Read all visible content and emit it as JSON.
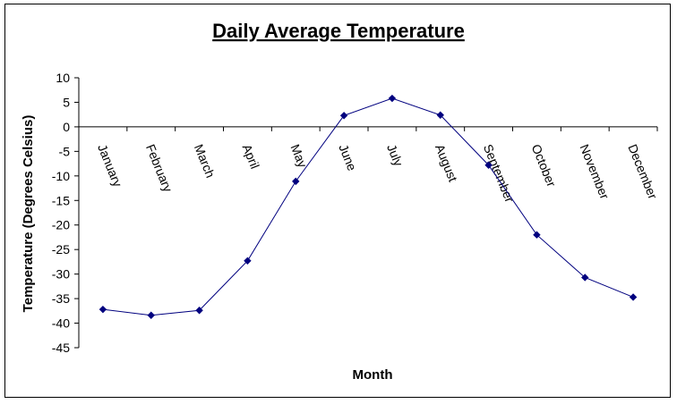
{
  "chart_data": {
    "type": "line",
    "title": "Daily Average Temperature",
    "xlabel": "Month",
    "ylabel": "Temperature (Degrees Celsius)",
    "ylim": [
      -45,
      10
    ],
    "ytick_step": 5,
    "grid": false,
    "legend": "none",
    "categories": [
      "January",
      "February",
      "March",
      "April",
      "May",
      "June",
      "July",
      "August",
      "September",
      "October",
      "November",
      "December"
    ],
    "series": [
      {
        "values": [
          -37.2,
          -38.4,
          -37.4,
          -27.3,
          -11.1,
          2.3,
          5.8,
          2.4,
          -7.8,
          -22.0,
          -30.7,
          -34.7
        ],
        "color": "#00007f"
      }
    ]
  }
}
